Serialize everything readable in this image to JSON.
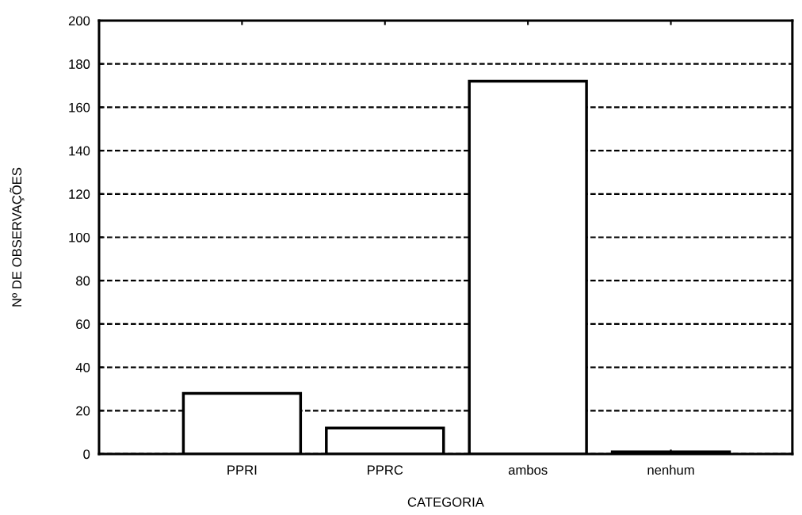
{
  "chart_data": {
    "type": "bar",
    "xlabel": "CATEGORIA",
    "ylabel": "Nº DE OBSERVAÇÕES",
    "categories": [
      "PPRI",
      "PPRC",
      "ambos",
      "nenhum"
    ],
    "values": [
      28,
      12,
      172,
      1
    ],
    "color": "#ffffff",
    "ylim": [
      0,
      200
    ],
    "yticks": [
      0,
      20,
      40,
      60,
      80,
      100,
      120,
      140,
      160,
      180,
      200
    ],
    "grid": "y"
  }
}
